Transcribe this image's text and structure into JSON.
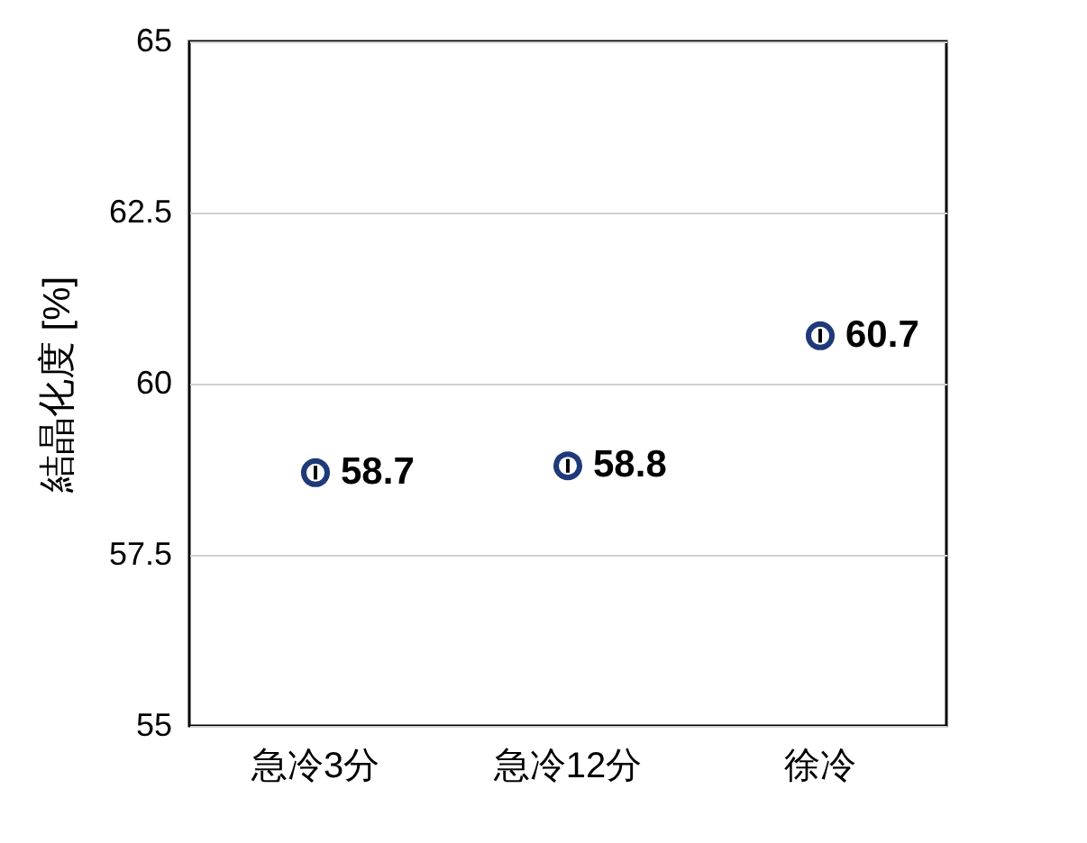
{
  "chart_data": {
    "type": "scatter",
    "ylabel": "結晶化度 [%]",
    "categories": [
      "急冷3分",
      "急冷12分",
      "徐冷"
    ],
    "series": [
      {
        "color": "#1f3a78",
        "values": [
          58.7,
          58.8,
          60.7
        ],
        "errors": [
          0.1,
          0.1,
          0.1
        ]
      }
    ],
    "ylim": [
      55,
      65
    ],
    "yticks": [
      55,
      57.5,
      60,
      62.5,
      65
    ],
    "grid": "y",
    "marker": "circle",
    "data_labels": true
  }
}
